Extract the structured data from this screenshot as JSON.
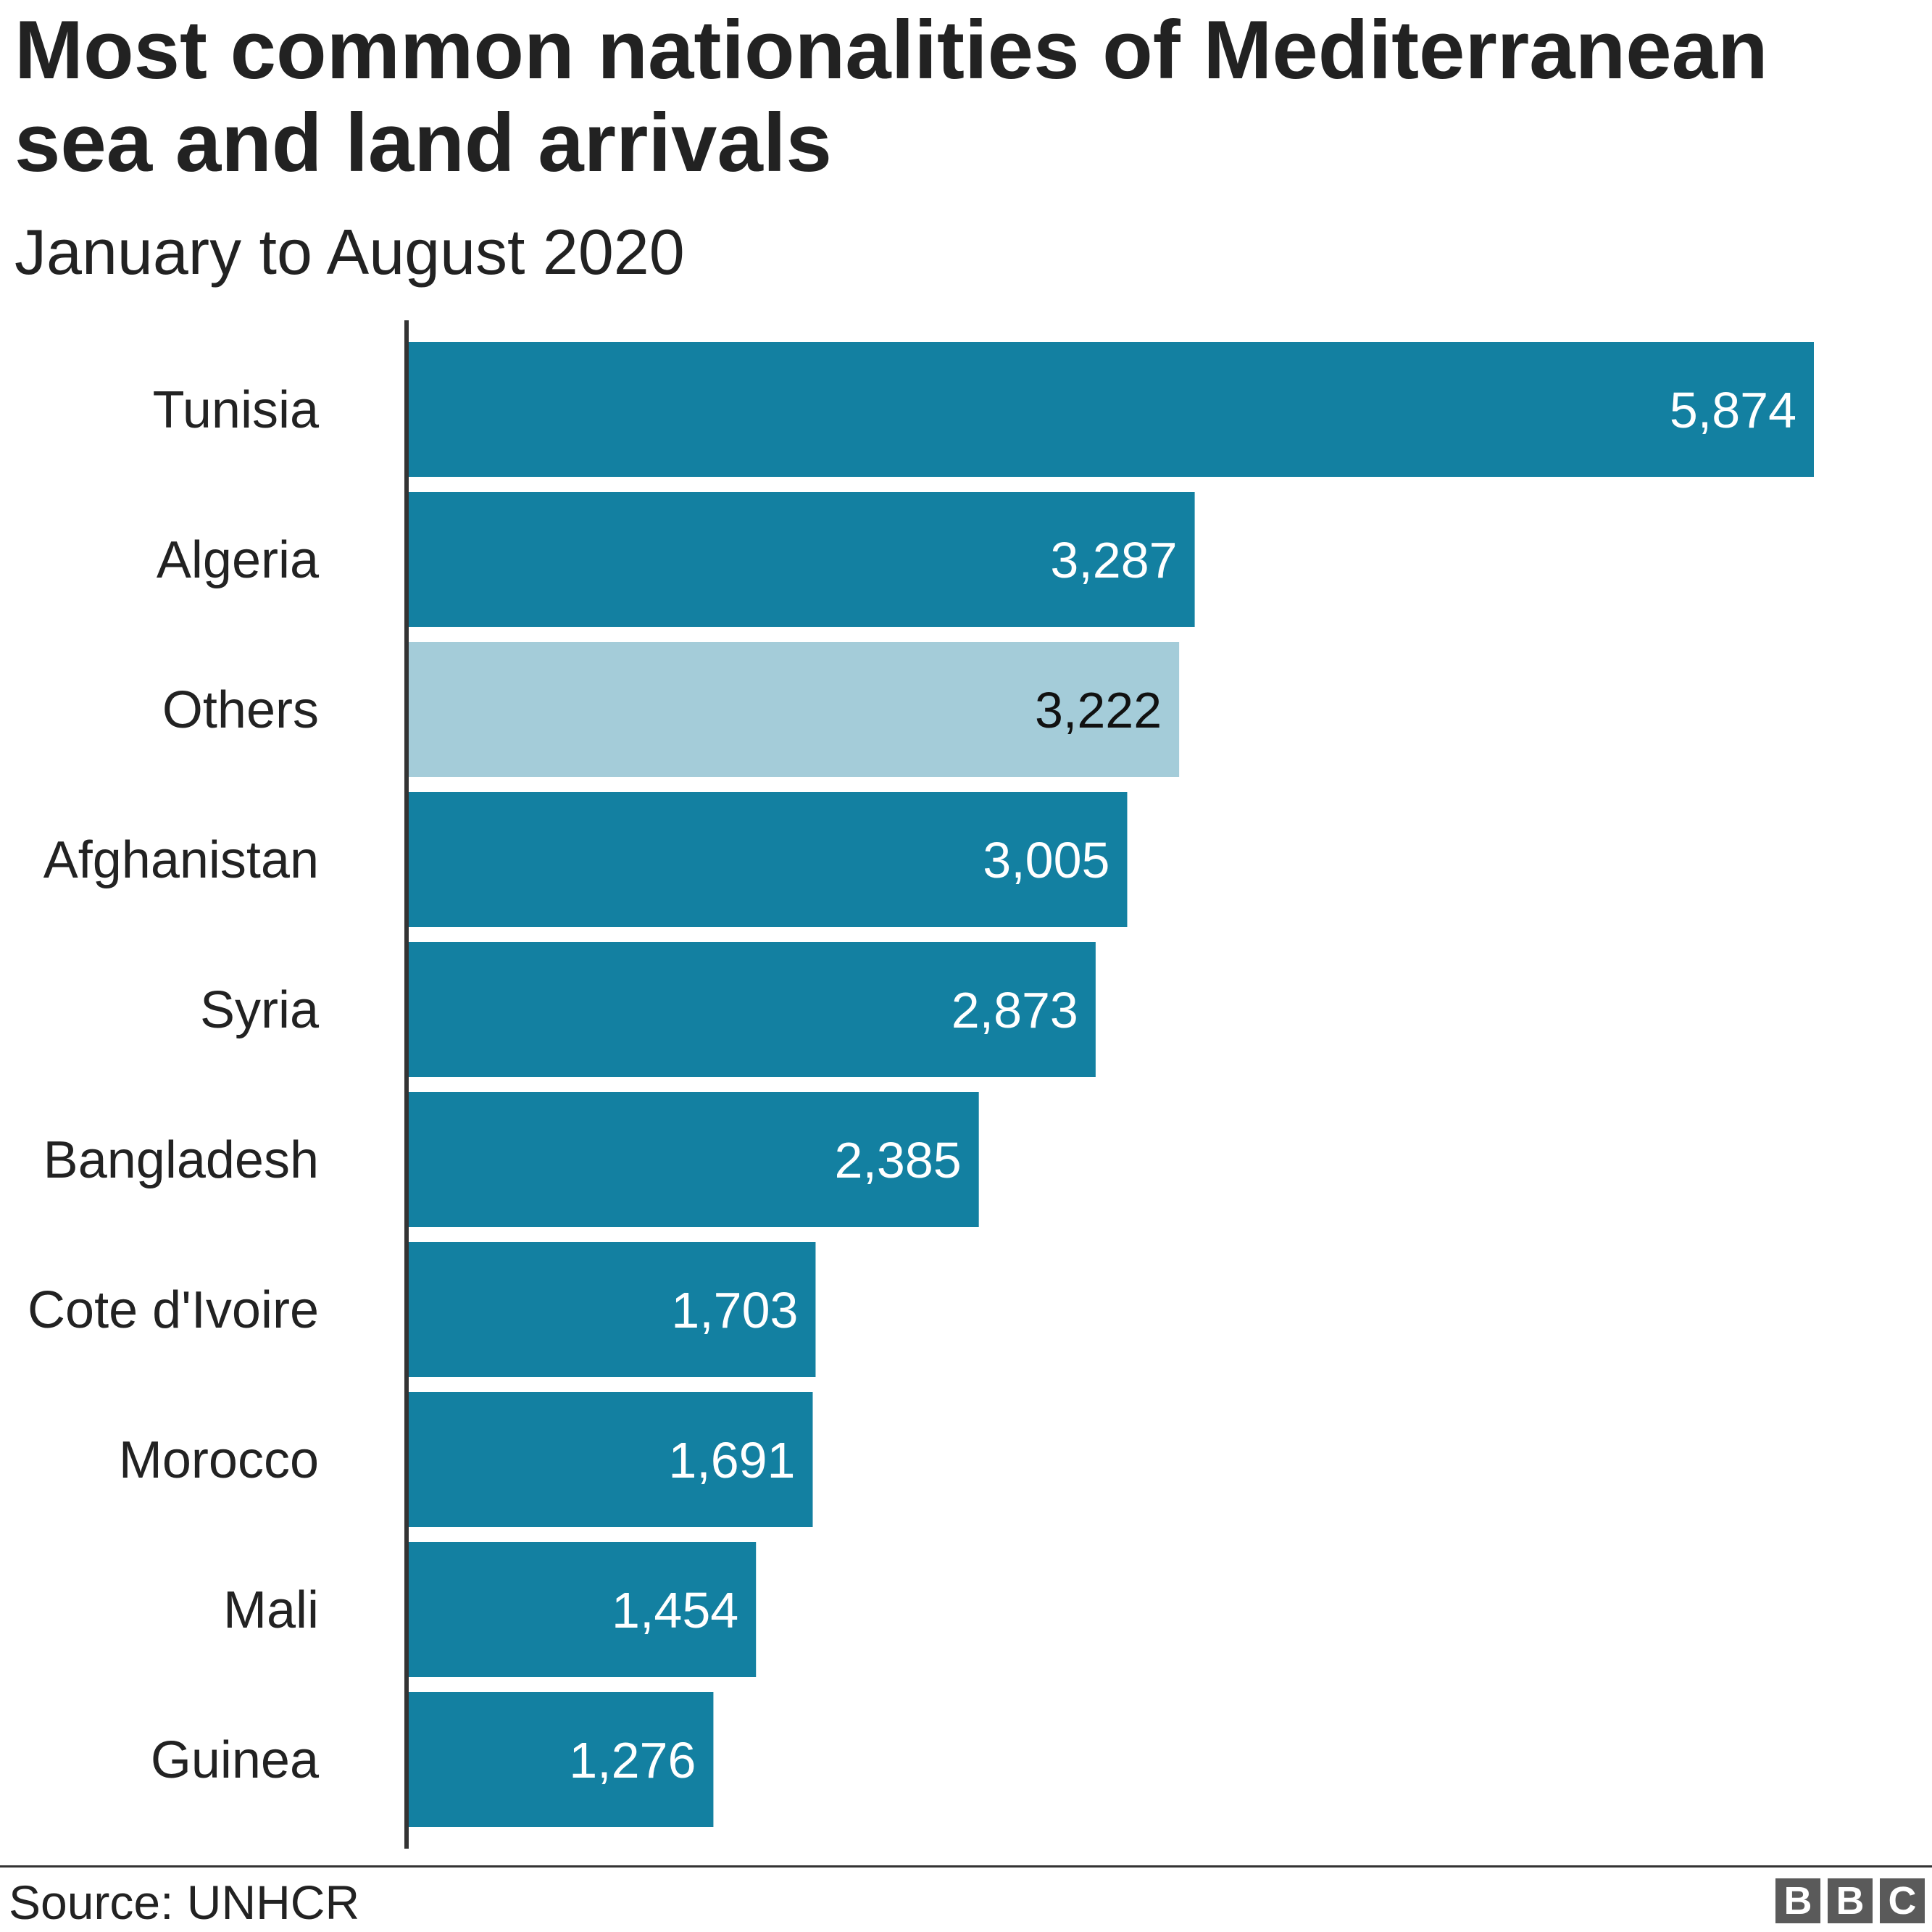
{
  "header": {
    "title": "Most common nationalities of Mediterranean sea and land arrivals",
    "subtitle": "January to August 2020"
  },
  "footer": {
    "source": "Source: UNHCR",
    "logo": [
      "B",
      "B",
      "C"
    ]
  },
  "colors": {
    "bar": "#1380a1",
    "bar_highlight": "#a4ccd9",
    "axis": "#333333",
    "label_on_dark": "#ffffff",
    "label_on_light": "#111111"
  },
  "chart_data": {
    "type": "bar",
    "orientation": "horizontal",
    "title": "Most common nationalities of Mediterranean sea and land arrivals",
    "subtitle": "January to August 2020",
    "categories": [
      "Tunisia",
      "Algeria",
      "Others",
      "Afghanistan",
      "Syria",
      "Bangladesh",
      "Cote d'Ivoire",
      "Morocco",
      "Mali",
      "Guinea"
    ],
    "values": [
      5874,
      3287,
      3222,
      3005,
      2873,
      2385,
      1703,
      1691,
      1454,
      1276
    ],
    "value_labels": [
      "5,874",
      "3,287",
      "3,222",
      "3,005",
      "2,873",
      "2,385",
      "1,703",
      "1,691",
      "1,454",
      "1,276"
    ],
    "highlight": [
      "Others"
    ],
    "xlim": [
      0,
      5874
    ],
    "grid": false,
    "legend": "none"
  }
}
